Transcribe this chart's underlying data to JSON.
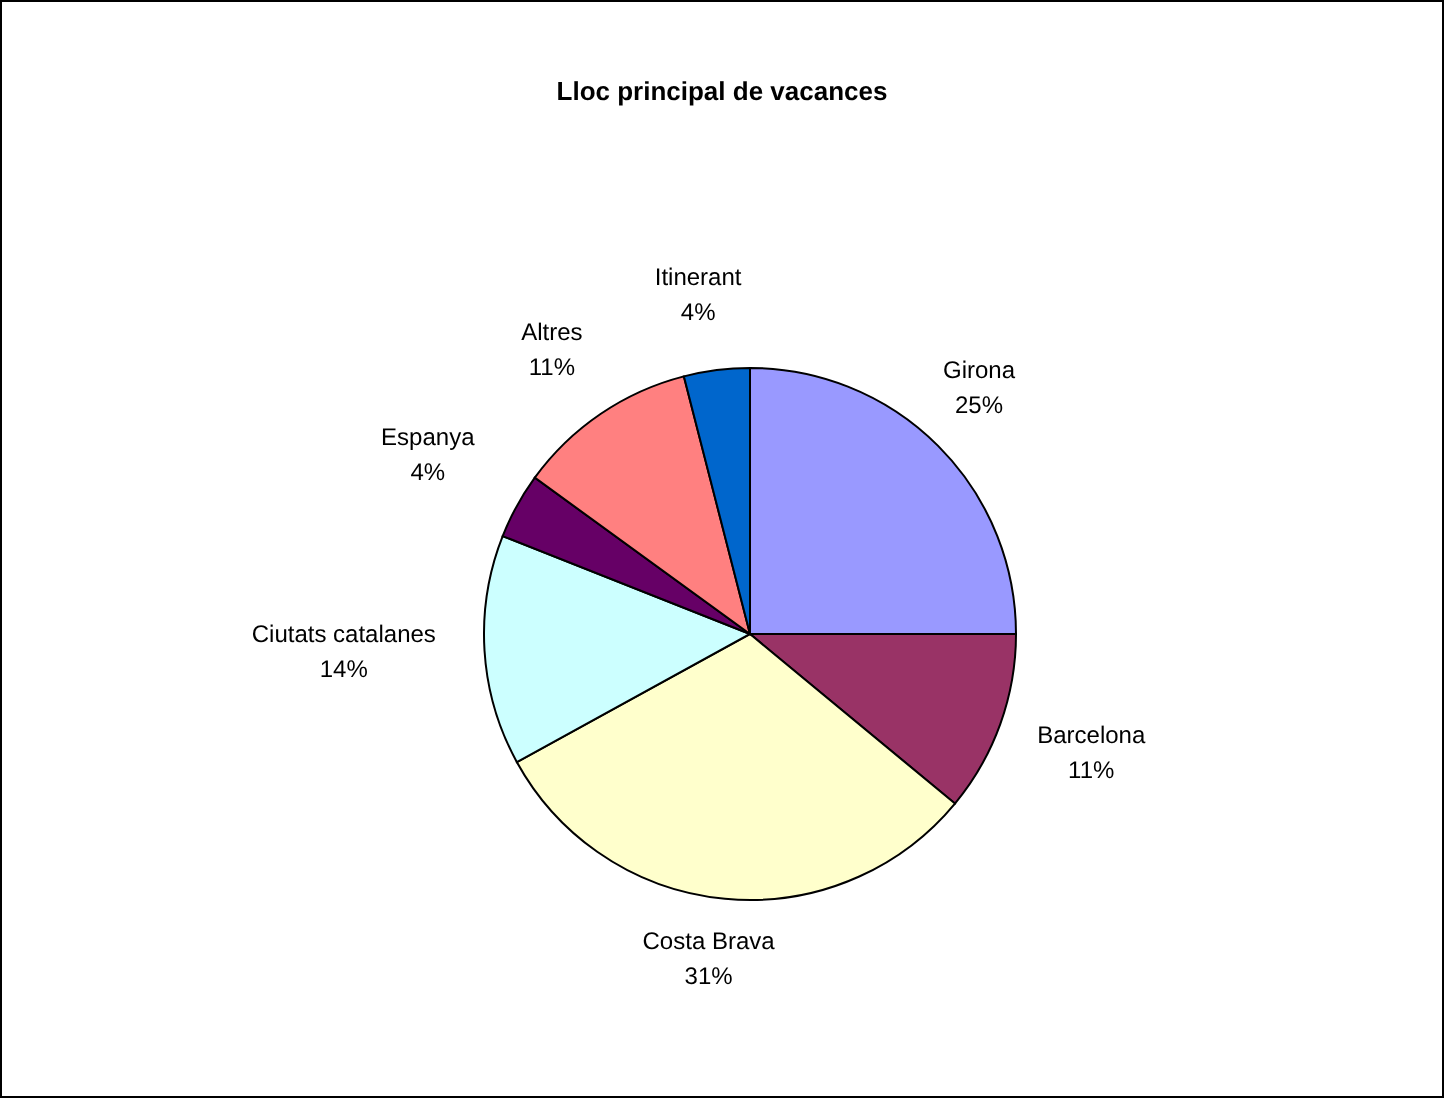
{
  "chart_data": {
    "type": "pie",
    "title": "Lloc principal de vacances",
    "categories": [
      "Girona",
      "Barcelona",
      "Costa Brava",
      "Ciutats catalanes",
      "Espanya",
      "Altres",
      "Itinerant"
    ],
    "values": [
      25,
      11,
      31,
      14,
      4,
      11,
      4
    ],
    "value_labels": [
      "25%",
      "11%",
      "31%",
      "14%",
      "4%",
      "11%",
      "4%"
    ],
    "colors": [
      "#9999ff",
      "#993366",
      "#ffffcc",
      "#ccffff",
      "#660066",
      "#ff8080",
      "#0066cc"
    ],
    "legend": false
  }
}
